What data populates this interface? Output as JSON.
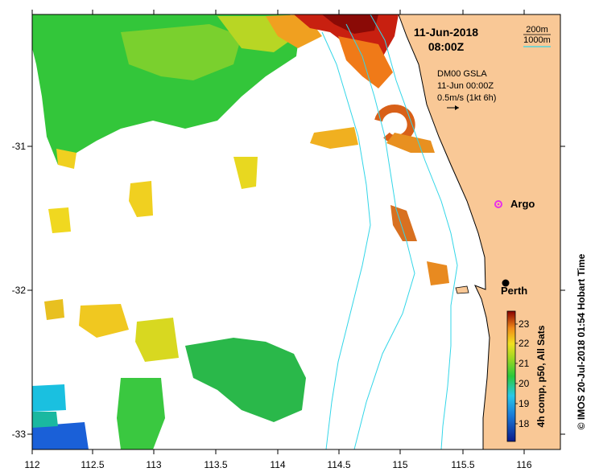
{
  "title": {
    "date": "11-Jun-2018",
    "time": "08:00Z"
  },
  "bathymetry_legend": {
    "label_200": "200m",
    "label_1000": "1000m"
  },
  "gsla": {
    "name": "DM00 GSLA",
    "time": "11-Jun 00:00Z",
    "scale": "0.5m/s (1kt 6h)"
  },
  "places": {
    "argo": "Argo",
    "perth": "Perth"
  },
  "colorbar": {
    "label": "4h comp, p50, All Sats",
    "ticks": [
      "23",
      "22",
      "21",
      "20",
      "19",
      "18"
    ]
  },
  "credit": "© IMOS 20-Jul-2018 01:54 Hobart Time",
  "axes": {
    "x_ticks": [
      "112",
      "112.5",
      "113",
      "113.5",
      "114",
      "114.5",
      "115",
      "115.5",
      "116"
    ],
    "y_ticks": [
      "-31",
      "-32",
      "-33"
    ]
  },
  "colors": {
    "land": "#f9c896",
    "isobath": "#33d6e8",
    "argo": "#e830e8",
    "sst_cold": "#0a1a8a",
    "sst_mid": "#2ac83a",
    "sst_warm": "#f0e020",
    "sst_hot": "#8a0000"
  }
}
